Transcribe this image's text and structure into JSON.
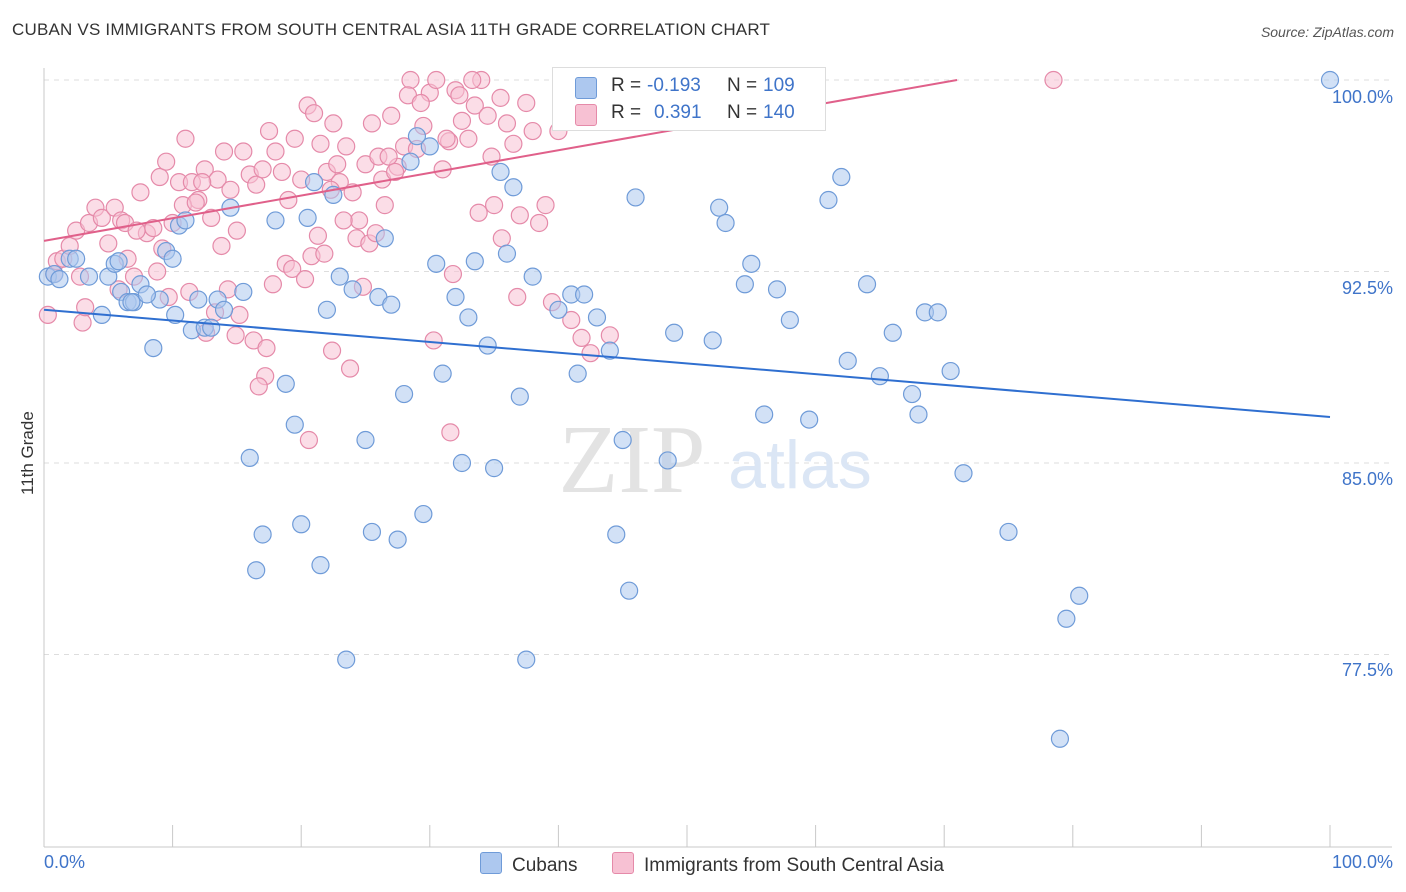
{
  "title": "CUBAN VS IMMIGRANTS FROM SOUTH CENTRAL ASIA 11TH GRADE CORRELATION CHART",
  "source": "Source: ZipAtlas.com",
  "watermark": {
    "zip": "ZIP",
    "atlas": "atlas"
  },
  "legend": {
    "cubans": {
      "r_label": "R =",
      "r_value": "-0.193",
      "n_label": "N =",
      "n_value": "109"
    },
    "immigrants": {
      "r_label": "R =",
      "r_value": "0.391",
      "n_label": "N =",
      "n_value": "140"
    }
  },
  "bottom_legend": {
    "cubans": "Cubans",
    "immigrants": "Immigrants from South Central Asia"
  },
  "colors": {
    "cubans_fill": "#adc8ef",
    "cubans_stroke": "#6f9bd8",
    "cubans_line": "#2f6fd0",
    "immigrants_fill": "#f7c1d3",
    "immigrants_stroke": "#e58aa9",
    "immigrants_line": "#e0608a",
    "tick_text": "#3f74c9",
    "grid": "#dddddd"
  },
  "chart_data": {
    "type": "scatter",
    "title": "CUBAN VS IMMIGRANTS FROM SOUTH CENTRAL ASIA 11TH GRADE CORRELATION CHART",
    "xlabel": "",
    "ylabel": "11th Grade",
    "xlim": [
      0,
      100
    ],
    "ylim": [
      70.5,
      101.2
    ],
    "x_tick_labels": [
      "0.0%",
      "100.0%"
    ],
    "y_ticks": [
      77.5,
      85.0,
      92.5,
      100.0
    ],
    "y_tick_labels": [
      "77.5%",
      "85.0%",
      "92.5%",
      "100.0%"
    ],
    "grid": "horizontal dashed",
    "legend_placement": "top-center",
    "series": [
      {
        "name": "Cubans",
        "trend": {
          "x": [
            0,
            100
          ],
          "y": [
            91.0,
            86.8
          ]
        },
        "points": [
          [
            0.3,
            92.3
          ],
          [
            0.8,
            92.4
          ],
          [
            1.2,
            92.2
          ],
          [
            2.0,
            93.0
          ],
          [
            2.5,
            93.0
          ],
          [
            3.5,
            92.3
          ],
          [
            4.5,
            90.8
          ],
          [
            5.0,
            92.3
          ],
          [
            5.5,
            92.8
          ],
          [
            6.0,
            91.7
          ],
          [
            6.5,
            91.3
          ],
          [
            7.0,
            91.3
          ],
          [
            7.5,
            92.0
          ],
          [
            8.5,
            89.5
          ],
          [
            9.0,
            91.4
          ],
          [
            9.5,
            93.3
          ],
          [
            10.0,
            93.0
          ],
          [
            10.5,
            94.3
          ],
          [
            11.0,
            94.5
          ],
          [
            11.5,
            90.2
          ],
          [
            12.0,
            91.4
          ],
          [
            12.5,
            90.3
          ],
          [
            13.0,
            90.3
          ],
          [
            13.5,
            91.4
          ],
          [
            14.0,
            91.0
          ],
          [
            14.5,
            95.0
          ],
          [
            15.5,
            91.7
          ],
          [
            16.0,
            85.2
          ],
          [
            17.0,
            82.2
          ],
          [
            16.5,
            80.8
          ],
          [
            18.0,
            94.5
          ],
          [
            18.8,
            88.1
          ],
          [
            19.5,
            86.5
          ],
          [
            20.0,
            82.6
          ],
          [
            20.5,
            94.6
          ],
          [
            21.0,
            96.0
          ],
          [
            21.5,
            81.0
          ],
          [
            22.0,
            91.0
          ],
          [
            22.5,
            95.5
          ],
          [
            23.0,
            92.3
          ],
          [
            23.5,
            77.3
          ],
          [
            24.0,
            91.8
          ],
          [
            25.0,
            85.9
          ],
          [
            25.5,
            82.3
          ],
          [
            26.0,
            91.5
          ],
          [
            26.5,
            93.8
          ],
          [
            27.0,
            91.2
          ],
          [
            27.5,
            82.0
          ],
          [
            28.0,
            87.7
          ],
          [
            28.5,
            96.8
          ],
          [
            29.0,
            97.8
          ],
          [
            29.5,
            83.0
          ],
          [
            30.0,
            97.4
          ],
          [
            30.5,
            92.8
          ],
          [
            31.0,
            88.5
          ],
          [
            32.0,
            91.5
          ],
          [
            32.5,
            85.0
          ],
          [
            33.0,
            90.7
          ],
          [
            33.5,
            92.9
          ],
          [
            34.5,
            89.6
          ],
          [
            35.0,
            84.8
          ],
          [
            35.5,
            96.4
          ],
          [
            36.0,
            93.2
          ],
          [
            36.5,
            95.8
          ],
          [
            37.0,
            87.6
          ],
          [
            37.5,
            77.3
          ],
          [
            38.0,
            92.3
          ],
          [
            40.0,
            91.0
          ],
          [
            41.0,
            91.6
          ],
          [
            41.5,
            88.5
          ],
          [
            42.0,
            91.6
          ],
          [
            43.0,
            90.7
          ],
          [
            44.0,
            89.4
          ],
          [
            44.5,
            82.2
          ],
          [
            45.0,
            85.9
          ],
          [
            45.5,
            80.0
          ],
          [
            46.0,
            95.4
          ],
          [
            48.5,
            85.1
          ],
          [
            49.0,
            90.1
          ],
          [
            52.0,
            89.8
          ],
          [
            52.5,
            95.0
          ],
          [
            53.0,
            94.4
          ],
          [
            54.5,
            92.0
          ],
          [
            55.0,
            92.8
          ],
          [
            56.0,
            86.9
          ],
          [
            57.0,
            91.8
          ],
          [
            58.0,
            90.6
          ],
          [
            59.5,
            86.7
          ],
          [
            61.0,
            95.3
          ],
          [
            62.0,
            96.2
          ],
          [
            62.5,
            89.0
          ],
          [
            64.0,
            92.0
          ],
          [
            65.0,
            88.4
          ],
          [
            66.0,
            90.1
          ],
          [
            67.5,
            87.7
          ],
          [
            68.0,
            86.9
          ],
          [
            68.5,
            90.9
          ],
          [
            69.5,
            90.9
          ],
          [
            70.5,
            88.6
          ],
          [
            71.5,
            84.6
          ],
          [
            75.0,
            82.3
          ],
          [
            79.5,
            78.9
          ],
          [
            80.5,
            79.8
          ],
          [
            79.0,
            74.2
          ],
          [
            100.0,
            100.0
          ],
          [
            5.8,
            92.9
          ],
          [
            6.8,
            91.3
          ],
          [
            8.0,
            91.6
          ],
          [
            10.2,
            90.8
          ]
        ]
      },
      {
        "name": "Immigrants from South Central Asia",
        "trend": {
          "x": [
            0,
            71
          ],
          "y": [
            93.7,
            100.0
          ]
        },
        "points": [
          [
            0.3,
            90.8
          ],
          [
            0.8,
            92.4
          ],
          [
            1.0,
            92.9
          ],
          [
            1.5,
            93.0
          ],
          [
            2.0,
            93.5
          ],
          [
            2.5,
            94.1
          ],
          [
            3.0,
            90.5
          ],
          [
            3.5,
            94.4
          ],
          [
            4.0,
            95.0
          ],
          [
            4.5,
            94.6
          ],
          [
            5.0,
            93.6
          ],
          [
            5.5,
            95.0
          ],
          [
            6.0,
            94.5
          ],
          [
            6.5,
            93.0
          ],
          [
            7.0,
            92.3
          ],
          [
            7.5,
            95.6
          ],
          [
            8.0,
            94.0
          ],
          [
            8.5,
            94.2
          ],
          [
            9.0,
            96.2
          ],
          [
            9.5,
            96.8
          ],
          [
            10.0,
            94.4
          ],
          [
            10.5,
            96.0
          ],
          [
            11.0,
            97.7
          ],
          [
            11.5,
            96.0
          ],
          [
            12.0,
            95.3
          ],
          [
            12.5,
            96.5
          ],
          [
            13.0,
            94.6
          ],
          [
            13.5,
            96.1
          ],
          [
            14.0,
            97.2
          ],
          [
            14.5,
            95.7
          ],
          [
            15.0,
            94.1
          ],
          [
            15.5,
            97.2
          ],
          [
            16.0,
            96.3
          ],
          [
            16.5,
            95.9
          ],
          [
            17.0,
            96.5
          ],
          [
            17.5,
            98.0
          ],
          [
            18.0,
            97.2
          ],
          [
            18.5,
            96.4
          ],
          [
            19.0,
            95.3
          ],
          [
            19.5,
            97.7
          ],
          [
            20.0,
            96.1
          ],
          [
            20.5,
            99.0
          ],
          [
            21.0,
            98.7
          ],
          [
            21.5,
            97.5
          ],
          [
            22.0,
            96.4
          ],
          [
            22.5,
            98.3
          ],
          [
            23.0,
            96.0
          ],
          [
            23.5,
            97.4
          ],
          [
            24.0,
            95.6
          ],
          [
            24.5,
            94.5
          ],
          [
            25.0,
            96.7
          ],
          [
            25.5,
            98.3
          ],
          [
            26.0,
            97.0
          ],
          [
            26.5,
            95.1
          ],
          [
            27.0,
            98.6
          ],
          [
            27.5,
            96.6
          ],
          [
            28.0,
            97.4
          ],
          [
            28.5,
            100.0
          ],
          [
            29.0,
            97.3
          ],
          [
            29.5,
            98.2
          ],
          [
            30.0,
            99.5
          ],
          [
            30.5,
            100.0
          ],
          [
            31.0,
            96.5
          ],
          [
            31.5,
            97.6
          ],
          [
            32.0,
            99.6
          ],
          [
            32.5,
            98.4
          ],
          [
            33.0,
            97.7
          ],
          [
            33.5,
            99.0
          ],
          [
            34.0,
            100.0
          ],
          [
            34.5,
            98.6
          ],
          [
            35.0,
            95.1
          ],
          [
            35.5,
            99.3
          ],
          [
            36.0,
            98.3
          ],
          [
            36.5,
            97.5
          ],
          [
            37.0,
            94.7
          ],
          [
            37.5,
            99.1
          ],
          [
            38.0,
            98.0
          ],
          [
            38.5,
            94.4
          ],
          [
            39.0,
            95.1
          ],
          [
            40.0,
            98.0
          ],
          [
            2.8,
            92.3
          ],
          [
            3.2,
            91.1
          ],
          [
            5.8,
            91.8
          ],
          [
            6.3,
            94.4
          ],
          [
            7.2,
            94.1
          ],
          [
            8.8,
            92.5
          ],
          [
            9.2,
            93.4
          ],
          [
            10.8,
            95.1
          ],
          [
            11.8,
            95.2
          ],
          [
            12.3,
            96.0
          ],
          [
            13.8,
            93.5
          ],
          [
            14.3,
            91.8
          ],
          [
            15.2,
            90.8
          ],
          [
            16.3,
            89.8
          ],
          [
            17.3,
            89.5
          ],
          [
            17.8,
            92.0
          ],
          [
            18.8,
            92.8
          ],
          [
            19.3,
            92.6
          ],
          [
            20.3,
            92.2
          ],
          [
            20.8,
            93.1
          ],
          [
            21.3,
            93.9
          ],
          [
            21.8,
            93.2
          ],
          [
            22.3,
            95.7
          ],
          [
            22.8,
            96.7
          ],
          [
            23.3,
            94.5
          ],
          [
            24.3,
            93.8
          ],
          [
            25.3,
            93.6
          ],
          [
            25.8,
            94.0
          ],
          [
            26.3,
            96.1
          ],
          [
            26.8,
            97.0
          ],
          [
            27.3,
            96.4
          ],
          [
            28.3,
            99.4
          ],
          [
            29.3,
            99.1
          ],
          [
            31.3,
            97.7
          ],
          [
            32.3,
            99.4
          ],
          [
            33.3,
            100.0
          ],
          [
            30.3,
            89.8
          ],
          [
            31.8,
            92.4
          ],
          [
            33.8,
            94.8
          ],
          [
            34.8,
            97.0
          ],
          [
            24.8,
            91.9
          ],
          [
            23.8,
            88.7
          ],
          [
            22.4,
            89.4
          ],
          [
            17.2,
            88.4
          ],
          [
            16.7,
            88.0
          ],
          [
            13.3,
            90.9
          ],
          [
            14.9,
            90.0
          ],
          [
            12.6,
            90.1
          ],
          [
            11.3,
            91.7
          ],
          [
            9.7,
            91.5
          ],
          [
            36.8,
            91.5
          ],
          [
            39.5,
            91.3
          ],
          [
            41.0,
            90.6
          ],
          [
            41.8,
            89.9
          ],
          [
            42.5,
            89.3
          ],
          [
            44.0,
            90.0
          ],
          [
            35.6,
            93.8
          ],
          [
            31.6,
            86.2
          ],
          [
            20.6,
            85.9
          ],
          [
            78.5,
            100.0
          ]
        ]
      }
    ]
  }
}
